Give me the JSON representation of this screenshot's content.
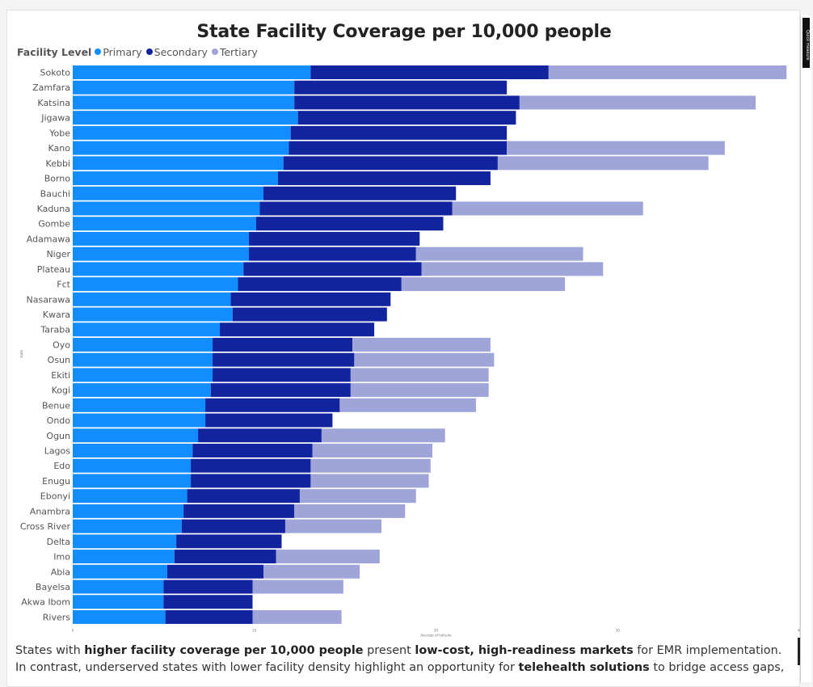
{
  "narrative": {
    "part1": "States with ",
    "bold1": "higher facility coverage per 10,000 people",
    "part2": " present ",
    "bold2": "low-cost, high-readiness markets",
    "part3": " for EMR implementation. In contrast, underserved states with lower facility density highlight an opportunity for ",
    "bold3": "telehealth solutions",
    "part4": " to bridge access gaps, though at higher"
  },
  "side_pane": {
    "label": "Quick measure"
  },
  "chart_data": {
    "type": "bar",
    "orientation": "horizontal",
    "stacked": true,
    "title": "State Facility Coverage per 10,000 people",
    "legend": {
      "title": "Facility Level",
      "placement": "top-left"
    },
    "xlabel": "Average of latitude",
    "ylabel": "state",
    "xlim": [
      0,
      40
    ],
    "xticks": [
      "0",
      "10",
      "20",
      "30",
      "40"
    ],
    "grid": false,
    "categories": [
      "Sokoto",
      "Zamfara",
      "Katsina",
      "Jigawa",
      "Yobe",
      "Kano",
      "Kebbi",
      "Borno",
      "Bauchi",
      "Kaduna",
      "Gombe",
      "Adamawa",
      "Niger",
      "Plateau",
      "Fct",
      "Nasarawa",
      "Kwara",
      "Taraba",
      "Oyo",
      "Osun",
      "Ekiti",
      "Kogi",
      "Benue",
      "Ondo",
      "Ogun",
      "Lagos",
      "Edo",
      "Enugu",
      "Ebonyi",
      "Anambra",
      "Cross River",
      "Delta",
      "Imo",
      "Abia",
      "Bayelsa",
      "Akwa Ibom",
      "Rivers"
    ],
    "series": [
      {
        "name": "Primary",
        "color": "#118dff",
        "values": [
          13.1,
          12.2,
          12.2,
          12.4,
          12.0,
          11.9,
          11.6,
          11.3,
          10.5,
          10.3,
          10.1,
          9.7,
          9.7,
          9.4,
          9.1,
          8.7,
          8.8,
          8.1,
          7.7,
          7.7,
          7.7,
          7.6,
          7.3,
          7.3,
          6.9,
          6.6,
          6.5,
          6.5,
          6.3,
          6.1,
          6.0,
          5.7,
          5.6,
          5.2,
          5.0,
          5.0,
          5.1
        ]
      },
      {
        "name": "Secondary",
        "color": "#12239e",
        "values": [
          13.1,
          11.7,
          12.4,
          12.0,
          11.9,
          12.0,
          11.8,
          11.7,
          10.6,
          10.6,
          10.3,
          9.4,
          9.2,
          9.8,
          9.0,
          8.8,
          8.5,
          8.5,
          7.7,
          7.8,
          7.6,
          7.7,
          7.4,
          7.0,
          6.8,
          6.6,
          6.6,
          6.6,
          6.2,
          6.1,
          5.7,
          5.8,
          5.6,
          5.3,
          4.9,
          4.9,
          4.8
        ]
      },
      {
        "name": "Tertiary",
        "color": "#a0a5d9",
        "values": [
          13.1,
          0,
          13.0,
          0,
          0,
          12.0,
          11.6,
          0,
          0,
          10.5,
          0,
          0,
          9.2,
          10.0,
          9.0,
          0,
          0,
          0,
          7.6,
          7.7,
          7.6,
          7.6,
          7.5,
          0,
          6.8,
          6.6,
          6.6,
          6.5,
          6.4,
          6.1,
          5.3,
          0,
          5.7,
          5.3,
          5.0,
          0,
          4.9
        ]
      }
    ]
  }
}
